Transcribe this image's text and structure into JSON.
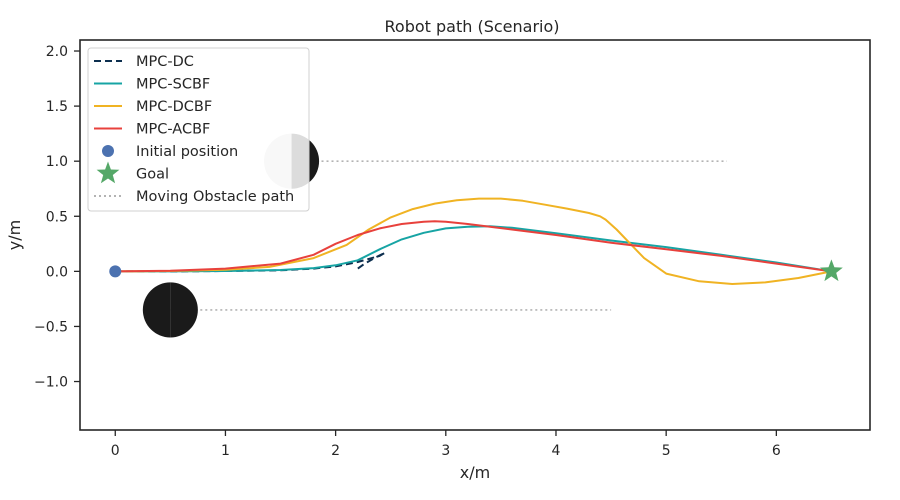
{
  "chart_data": {
    "type": "line",
    "title": "Robot path (Scenario)",
    "xlabel": "x/m",
    "ylabel": "y/m",
    "xlim": [
      -0.32,
      6.85
    ],
    "ylim": [
      -1.44,
      2.1
    ],
    "xticks": [
      0,
      1,
      2,
      3,
      4,
      5,
      6
    ],
    "xtick_labels": [
      "0",
      "1",
      "2",
      "3",
      "4",
      "5",
      "6"
    ],
    "yticks": [
      -1.0,
      -0.5,
      0.0,
      0.5,
      1.0,
      1.5,
      2.0
    ],
    "ytick_labels": [
      "−1.0",
      "−0.5",
      "0.0",
      "0.5",
      "1.0",
      "1.5",
      "2.0"
    ],
    "grid": false,
    "legend_position": "top-left",
    "series": [
      {
        "name": "MPC-DC",
        "color": "#0d2f4f",
        "dash": "dashed",
        "x": [
          0,
          0.5,
          1.0,
          1.5,
          1.8,
          2.0,
          2.2,
          2.4,
          2.45,
          2.35,
          2.25,
          2.18
        ],
        "y": [
          0,
          0,
          0.003,
          0.01,
          0.025,
          0.045,
          0.085,
          0.14,
          0.17,
          0.12,
          0.06,
          0.01
        ]
      },
      {
        "name": "MPC-SCBF",
        "color": "#17a4a4",
        "dash": "solid",
        "x": [
          0,
          0.5,
          1.0,
          1.5,
          1.8,
          2.0,
          2.2,
          2.4,
          2.6,
          2.8,
          3.0,
          3.2,
          3.4,
          3.6,
          4.0,
          4.5,
          5.0,
          5.5,
          6.0,
          6.5
        ],
        "y": [
          0,
          0,
          0.003,
          0.012,
          0.03,
          0.055,
          0.1,
          0.2,
          0.29,
          0.35,
          0.39,
          0.405,
          0.41,
          0.395,
          0.345,
          0.28,
          0.22,
          0.15,
          0.08,
          0.0
        ]
      },
      {
        "name": "MPC-DCBF",
        "color": "#f0b323",
        "dash": "solid",
        "x": [
          0,
          0.5,
          1.0,
          1.4,
          1.8,
          2.1,
          2.3,
          2.5,
          2.7,
          2.9,
          3.1,
          3.3,
          3.5,
          3.7,
          3.9,
          4.1,
          4.3,
          4.4,
          4.45,
          4.55,
          4.8,
          5.0,
          5.3,
          5.6,
          5.9,
          6.2,
          6.5
        ],
        "y": [
          0,
          0.003,
          0.015,
          0.04,
          0.12,
          0.24,
          0.38,
          0.49,
          0.565,
          0.615,
          0.645,
          0.66,
          0.66,
          0.64,
          0.605,
          0.57,
          0.53,
          0.5,
          0.47,
          0.38,
          0.12,
          -0.02,
          -0.09,
          -0.115,
          -0.1,
          -0.06,
          0.0
        ]
      },
      {
        "name": "MPC-ACBF",
        "color": "#e8413c",
        "dash": "solid",
        "x": [
          0,
          0.5,
          1.0,
          1.5,
          1.8,
          2.0,
          2.2,
          2.4,
          2.6,
          2.8,
          2.9,
          3.0,
          3.2,
          3.4,
          3.6,
          4.0,
          4.5,
          5.0,
          5.5,
          6.0,
          6.5
        ],
        "y": [
          0,
          0.005,
          0.025,
          0.07,
          0.15,
          0.25,
          0.33,
          0.39,
          0.43,
          0.45,
          0.455,
          0.45,
          0.43,
          0.405,
          0.38,
          0.33,
          0.26,
          0.2,
          0.14,
          0.07,
          0.0
        ]
      }
    ],
    "initial_position": {
      "name": "Initial position",
      "x": 0,
      "y": 0,
      "color": "#4c72b0"
    },
    "goal": {
      "name": "Goal",
      "x": 6.5,
      "y": 0,
      "color": "#55a868"
    },
    "obstacle_path": {
      "name": "Moving Obstacle path",
      "color": "#b3b3b3",
      "paths": [
        {
          "x": [
            1.6,
            5.55
          ],
          "y": [
            1.0,
            1.0
          ]
        },
        {
          "x": [
            0.5,
            4.5
          ],
          "y": [
            -0.35,
            -0.35
          ]
        }
      ]
    },
    "obstacles": [
      {
        "x": 1.6,
        "y": 1.0,
        "radius": 0.25,
        "color_left": "#cccccc",
        "color_right": "#1a1a1a"
      },
      {
        "x": 0.5,
        "y": -0.35,
        "radius": 0.25,
        "color_left": "#1a1a1a",
        "color_right": "#1a1a1a"
      }
    ]
  }
}
